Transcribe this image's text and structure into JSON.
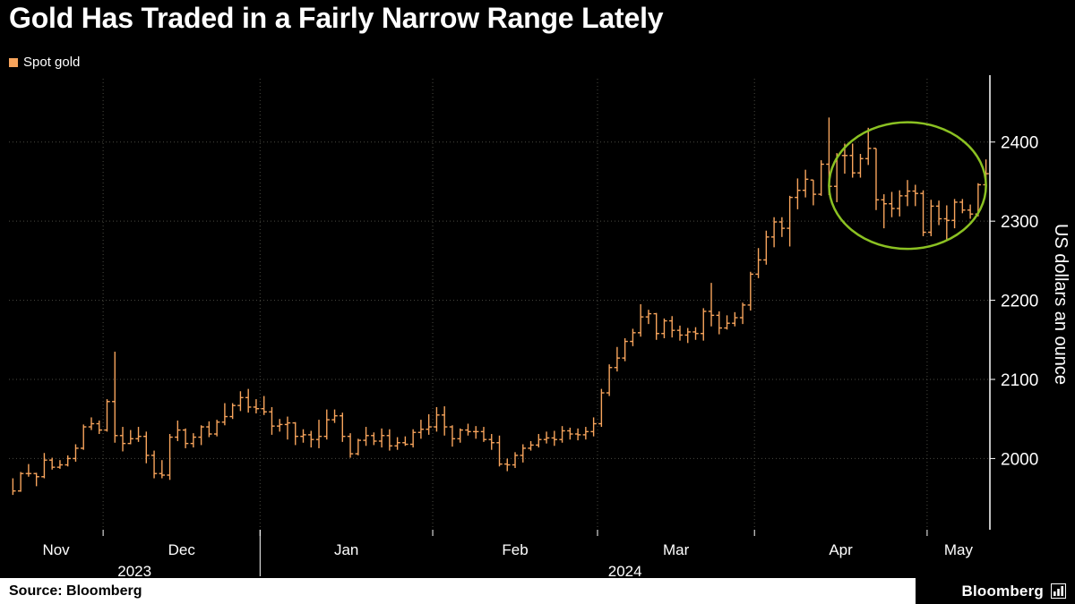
{
  "footer": {
    "source": "Source: Bloomberg",
    "brand": "Bloomberg"
  },
  "chart_data": {
    "type": "hlc_bar",
    "title": "Gold Has Traded in a Fairly Narrow Range Lately",
    "series_name": "Spot gold",
    "ylabel": "US dollars an ounce",
    "ylim": [
      1910,
      2480
    ],
    "y_ticks": [
      2000,
      2100,
      2200,
      2300,
      2400
    ],
    "x_month_labels": [
      "Nov",
      "Dec",
      "Jan",
      "Feb",
      "Mar",
      "Apr",
      "May"
    ],
    "x_year_labels": [
      "2023",
      "2024"
    ],
    "grid": "dotted",
    "legend_position": "top-left",
    "y_axis_position": "right",
    "bar_color": "#F7A45C",
    "grid_color": "#4A4A42",
    "axis_color": "#FFFFFF",
    "background_color": "#000000",
    "annotation": {
      "type": "ellipse",
      "color": "#8BC122",
      "center_date": "2024-04-26",
      "center_value": 2345,
      "radius_trading_days": 10,
      "radius_value": 80
    },
    "points_format": [
      "date",
      "low",
      "high",
      "close"
    ],
    "points": [
      [
        "2023-11-15",
        1954,
        1975,
        1959
      ],
      [
        "2023-11-16",
        1958,
        1983,
        1981
      ],
      [
        "2023-11-17",
        1977,
        1993,
        1981
      ],
      [
        "2023-11-20",
        1965,
        1982,
        1977
      ],
      [
        "2023-11-21",
        1975,
        2007,
        1998
      ],
      [
        "2023-11-22",
        1986,
        2001,
        1989
      ],
      [
        "2023-11-23",
        1987,
        1998,
        1992
      ],
      [
        "2023-11-24",
        1990,
        2004,
        2000
      ],
      [
        "2023-11-27",
        1996,
        2018,
        2013
      ],
      [
        "2023-11-28",
        2011,
        2043,
        2040
      ],
      [
        "2023-11-29",
        2036,
        2052,
        2044
      ],
      [
        "2023-11-30",
        2031,
        2048,
        2036
      ],
      [
        "2023-12-01",
        2034,
        2075,
        2072
      ],
      [
        "2023-12-04",
        2020,
        2135,
        2029
      ],
      [
        "2023-12-05",
        2009,
        2040,
        2019
      ],
      [
        "2023-12-06",
        2018,
        2036,
        2025
      ],
      [
        "2023-12-07",
        2021,
        2040,
        2028
      ],
      [
        "2023-12-08",
        1994,
        2034,
        2004
      ],
      [
        "2023-12-11",
        1975,
        2010,
        1981
      ],
      [
        "2023-12-12",
        1975,
        1998,
        1979
      ],
      [
        "2023-12-13",
        1973,
        2031,
        2027
      ],
      [
        "2023-12-14",
        2022,
        2048,
        2036
      ],
      [
        "2023-12-15",
        2013,
        2038,
        2019
      ],
      [
        "2023-12-18",
        2014,
        2032,
        2027
      ],
      [
        "2023-12-19",
        2017,
        2042,
        2040
      ],
      [
        "2023-12-20",
        2027,
        2047,
        2031
      ],
      [
        "2023-12-21",
        2028,
        2049,
        2046
      ],
      [
        "2023-12-22",
        2042,
        2070,
        2053
      ],
      [
        "2023-12-26",
        2050,
        2070,
        2067
      ],
      [
        "2023-12-27",
        2060,
        2085,
        2077
      ],
      [
        "2023-12-28",
        2058,
        2088,
        2065
      ],
      [
        "2023-12-29",
        2057,
        2075,
        2063
      ],
      [
        "2024-01-02",
        2055,
        2079,
        2059
      ],
      [
        "2024-01-03",
        2030,
        2065,
        2041
      ],
      [
        "2024-01-04",
        2034,
        2050,
        2043
      ],
      [
        "2024-01-05",
        2024,
        2053,
        2045
      ],
      [
        "2024-01-08",
        2017,
        2046,
        2028
      ],
      [
        "2024-01-09",
        2020,
        2037,
        2030
      ],
      [
        "2024-01-10",
        2014,
        2035,
        2024
      ],
      [
        "2024-01-11",
        2013,
        2049,
        2028
      ],
      [
        "2024-01-12",
        2024,
        2062,
        2049
      ],
      [
        "2024-01-15",
        2045,
        2062,
        2054
      ],
      [
        "2024-01-16",
        2021,
        2058,
        2028
      ],
      [
        "2024-01-17",
        2001,
        2032,
        2006
      ],
      [
        "2024-01-18",
        2004,
        2025,
        2023
      ],
      [
        "2024-01-19",
        2016,
        2040,
        2029
      ],
      [
        "2024-01-22",
        2017,
        2033,
        2022
      ],
      [
        "2024-01-23",
        2014,
        2038,
        2029
      ],
      [
        "2024-01-24",
        2010,
        2037,
        2016
      ],
      [
        "2024-01-25",
        2011,
        2027,
        2020
      ],
      [
        "2024-01-26",
        2016,
        2028,
        2018
      ],
      [
        "2024-01-29",
        2014,
        2037,
        2033
      ],
      [
        "2024-01-30",
        2025,
        2049,
        2037
      ],
      [
        "2024-01-31",
        2030,
        2056,
        2040
      ],
      [
        "2024-02-01",
        2034,
        2065,
        2055
      ],
      [
        "2024-02-02",
        2029,
        2066,
        2040
      ],
      [
        "2024-02-05",
        2015,
        2042,
        2025
      ],
      [
        "2024-02-06",
        2020,
        2038,
        2036
      ],
      [
        "2024-02-07",
        2029,
        2044,
        2034
      ],
      [
        "2024-02-08",
        2025,
        2041,
        2034
      ],
      [
        "2024-02-09",
        2021,
        2040,
        2024
      ],
      [
        "2024-02-12",
        2011,
        2031,
        2020
      ],
      [
        "2024-02-13",
        1990,
        2029,
        1993
      ],
      [
        "2024-02-14",
        1984,
        2000,
        1992
      ],
      [
        "2024-02-15",
        1988,
        2008,
        2004
      ],
      [
        "2024-02-16",
        1995,
        2018,
        2013
      ],
      [
        "2024-02-19",
        2010,
        2022,
        2017
      ],
      [
        "2024-02-20",
        2014,
        2031,
        2024
      ],
      [
        "2024-02-21",
        2019,
        2034,
        2026
      ],
      [
        "2024-02-22",
        2016,
        2035,
        2024
      ],
      [
        "2024-02-23",
        2020,
        2041,
        2035
      ],
      [
        "2024-02-26",
        2024,
        2039,
        2031
      ],
      [
        "2024-02-27",
        2023,
        2038,
        2030
      ],
      [
        "2024-02-28",
        2024,
        2040,
        2034
      ],
      [
        "2024-02-29",
        2028,
        2052,
        2044
      ],
      [
        "2024-03-01",
        2040,
        2088,
        2083
      ],
      [
        "2024-03-04",
        2079,
        2119,
        2115
      ],
      [
        "2024-03-05",
        2110,
        2141,
        2127
      ],
      [
        "2024-03-06",
        2123,
        2152,
        2148
      ],
      [
        "2024-03-07",
        2142,
        2164,
        2159
      ],
      [
        "2024-03-08",
        2154,
        2195,
        2179
      ],
      [
        "2024-03-11",
        2170,
        2188,
        2183
      ],
      [
        "2024-03-12",
        2150,
        2184,
        2158
      ],
      [
        "2024-03-13",
        2152,
        2177,
        2174
      ],
      [
        "2024-03-14",
        2153,
        2180,
        2162
      ],
      [
        "2024-03-15",
        2149,
        2168,
        2156
      ],
      [
        "2024-03-18",
        2146,
        2165,
        2160
      ],
      [
        "2024-03-19",
        2150,
        2166,
        2158
      ],
      [
        "2024-03-20",
        2149,
        2190,
        2186
      ],
      [
        "2024-03-21",
        2167,
        2222,
        2181
      ],
      [
        "2024-03-22",
        2157,
        2186,
        2165
      ],
      [
        "2024-03-25",
        2163,
        2181,
        2171
      ],
      [
        "2024-03-26",
        2167,
        2185,
        2178
      ],
      [
        "2024-03-27",
        2170,
        2197,
        2194
      ],
      [
        "2024-03-28",
        2187,
        2236,
        2233
      ],
      [
        "2024-04-01",
        2228,
        2266,
        2251
      ],
      [
        "2024-04-02",
        2245,
        2288,
        2280
      ],
      [
        "2024-04-03",
        2267,
        2305,
        2299
      ],
      [
        "2024-04-04",
        2280,
        2305,
        2291
      ],
      [
        "2024-04-05",
        2268,
        2332,
        2330
      ],
      [
        "2024-04-08",
        2315,
        2354,
        2339
      ],
      [
        "2024-04-09",
        2330,
        2365,
        2353
      ],
      [
        "2024-04-10",
        2320,
        2352,
        2334
      ],
      [
        "2024-04-11",
        2332,
        2377,
        2372
      ],
      [
        "2024-04-12",
        2333,
        2431,
        2344
      ],
      [
        "2024-04-15",
        2324,
        2386,
        2383
      ],
      [
        "2024-04-16",
        2360,
        2398,
        2383
      ],
      [
        "2024-04-17",
        2355,
        2398,
        2361
      ],
      [
        "2024-04-18",
        2355,
        2385,
        2379
      ],
      [
        "2024-04-19",
        2371,
        2418,
        2392
      ],
      [
        "2024-04-22",
        2314,
        2392,
        2327
      ],
      [
        "2024-04-23",
        2291,
        2334,
        2322
      ],
      [
        "2024-04-24",
        2305,
        2337,
        2316
      ],
      [
        "2024-04-25",
        2306,
        2339,
        2332
      ],
      [
        "2024-04-26",
        2319,
        2352,
        2338
      ],
      [
        "2024-04-29",
        2319,
        2346,
        2335
      ],
      [
        "2024-04-30",
        2281,
        2339,
        2286
      ],
      [
        "2024-05-01",
        2281,
        2327,
        2319
      ],
      [
        "2024-05-02",
        2295,
        2326,
        2303
      ],
      [
        "2024-05-03",
        2277,
        2320,
        2301
      ],
      [
        "2024-05-06",
        2291,
        2328,
        2324
      ],
      [
        "2024-05-07",
        2310,
        2328,
        2314
      ],
      [
        "2024-05-08",
        2303,
        2321,
        2309
      ],
      [
        "2024-05-09",
        2306,
        2348,
        2346
      ],
      [
        "2024-05-10",
        2345,
        2378,
        2360
      ]
    ]
  }
}
